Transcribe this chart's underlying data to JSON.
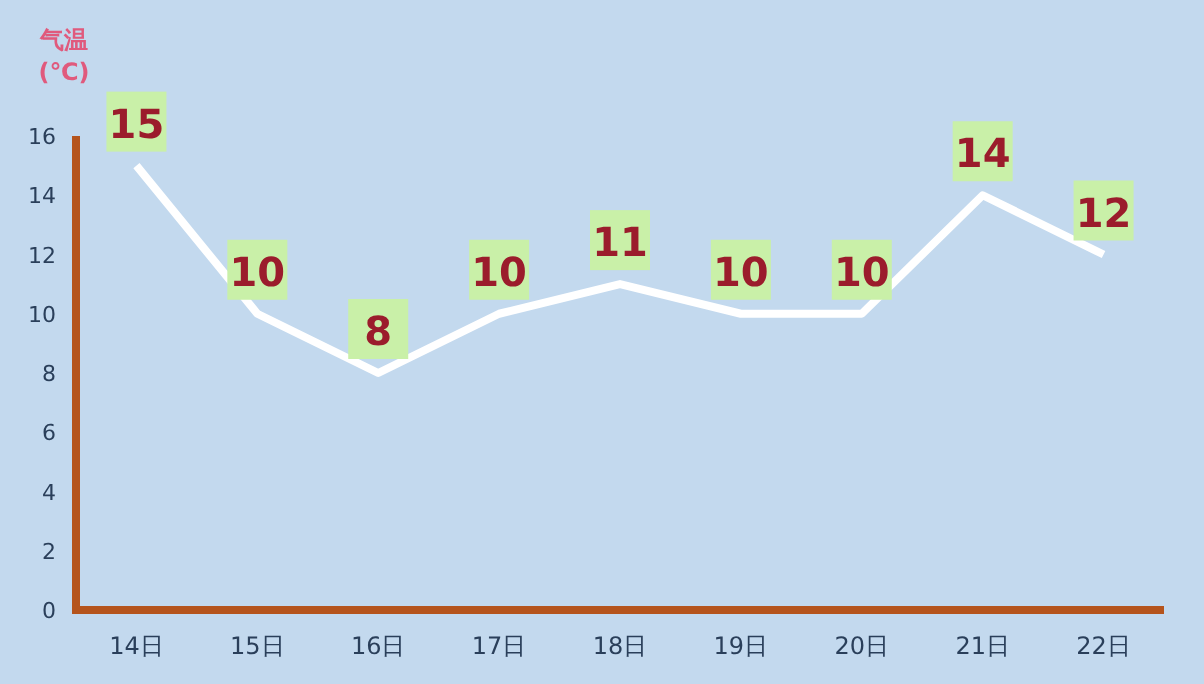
{
  "chart_data": {
    "type": "line",
    "ylabel": "气温 (℃)",
    "categories": [
      "14日",
      "15日",
      "16日",
      "17日",
      "18日",
      "19日",
      "20日",
      "21日",
      "22日"
    ],
    "series": [
      {
        "color": "#ffffff",
        "values": [
          15,
          10,
          8,
          10,
          11,
          10,
          10,
          14,
          12
        ]
      }
    ],
    "ylim": [
      0,
      16
    ],
    "yticks": [
      0,
      2,
      4,
      6,
      8,
      10,
      12,
      14,
      16
    ],
    "data_labels": true,
    "marker": "none",
    "line_style": "solid",
    "grid": false
  }
}
